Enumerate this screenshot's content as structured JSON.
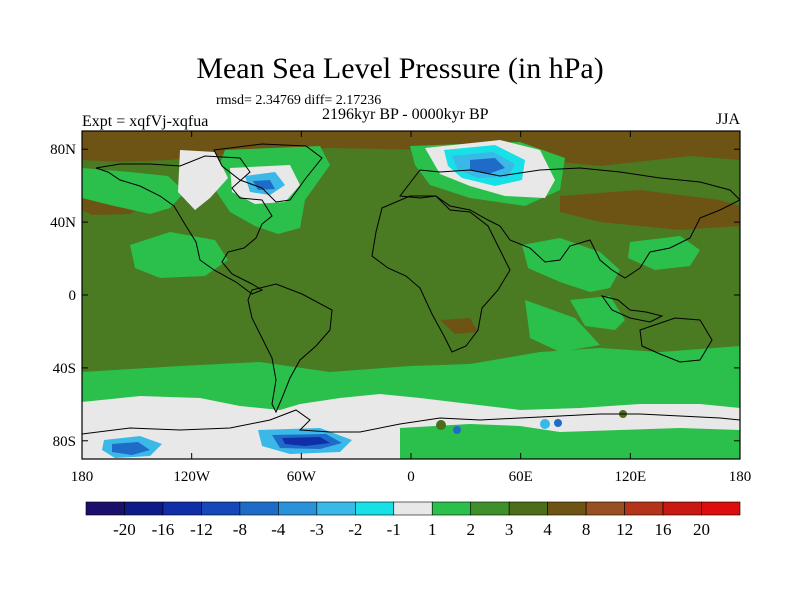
{
  "title": "Mean Sea Level Pressure (in hPa)",
  "stats": "rmsd= 2.34769 diff= 2.17236",
  "experiment": "Expt = xqfVj-xqfua",
  "period": "2196kyr BP - 0000kyr BP",
  "season": "JJA",
  "lat_ticks": [
    "80N",
    "40N",
    "0",
    "40S",
    "80S"
  ],
  "lon_ticks": [
    "180",
    "120W",
    "60W",
    "0",
    "60E",
    "120E",
    "180"
  ],
  "colorbar": {
    "labels": [
      "-20",
      "-16",
      "-12",
      "-8",
      "-4",
      "-3",
      "-2",
      "-1",
      "1",
      "2",
      "3",
      "4",
      "8",
      "12",
      "16",
      "20"
    ],
    "colors": [
      "#1a0f6b",
      "#0c1a8a",
      "#0f2ea8",
      "#1548b8",
      "#1e6cc8",
      "#2a92d8",
      "#3ab8e8",
      "#17e0e6",
      "#e8e8e8",
      "#2bbf4c",
      "#3f8f2a",
      "#4c6e1a",
      "#6e5414",
      "#985022",
      "#b33418",
      "#c81a12",
      "#dd0d0d"
    ]
  },
  "colors": {
    "ocean_base": "#4a7a22",
    "weak_positive": "#2bbf4c",
    "near_zero": "#e8e8e8",
    "moderate_positive": "#6e5414",
    "negative_light": "#3ab8e8",
    "negative_cyan": "#17e0e6",
    "negative_mid": "#1e6cc8",
    "negative_strong": "#0f2ea8",
    "coast": "#000000"
  }
}
